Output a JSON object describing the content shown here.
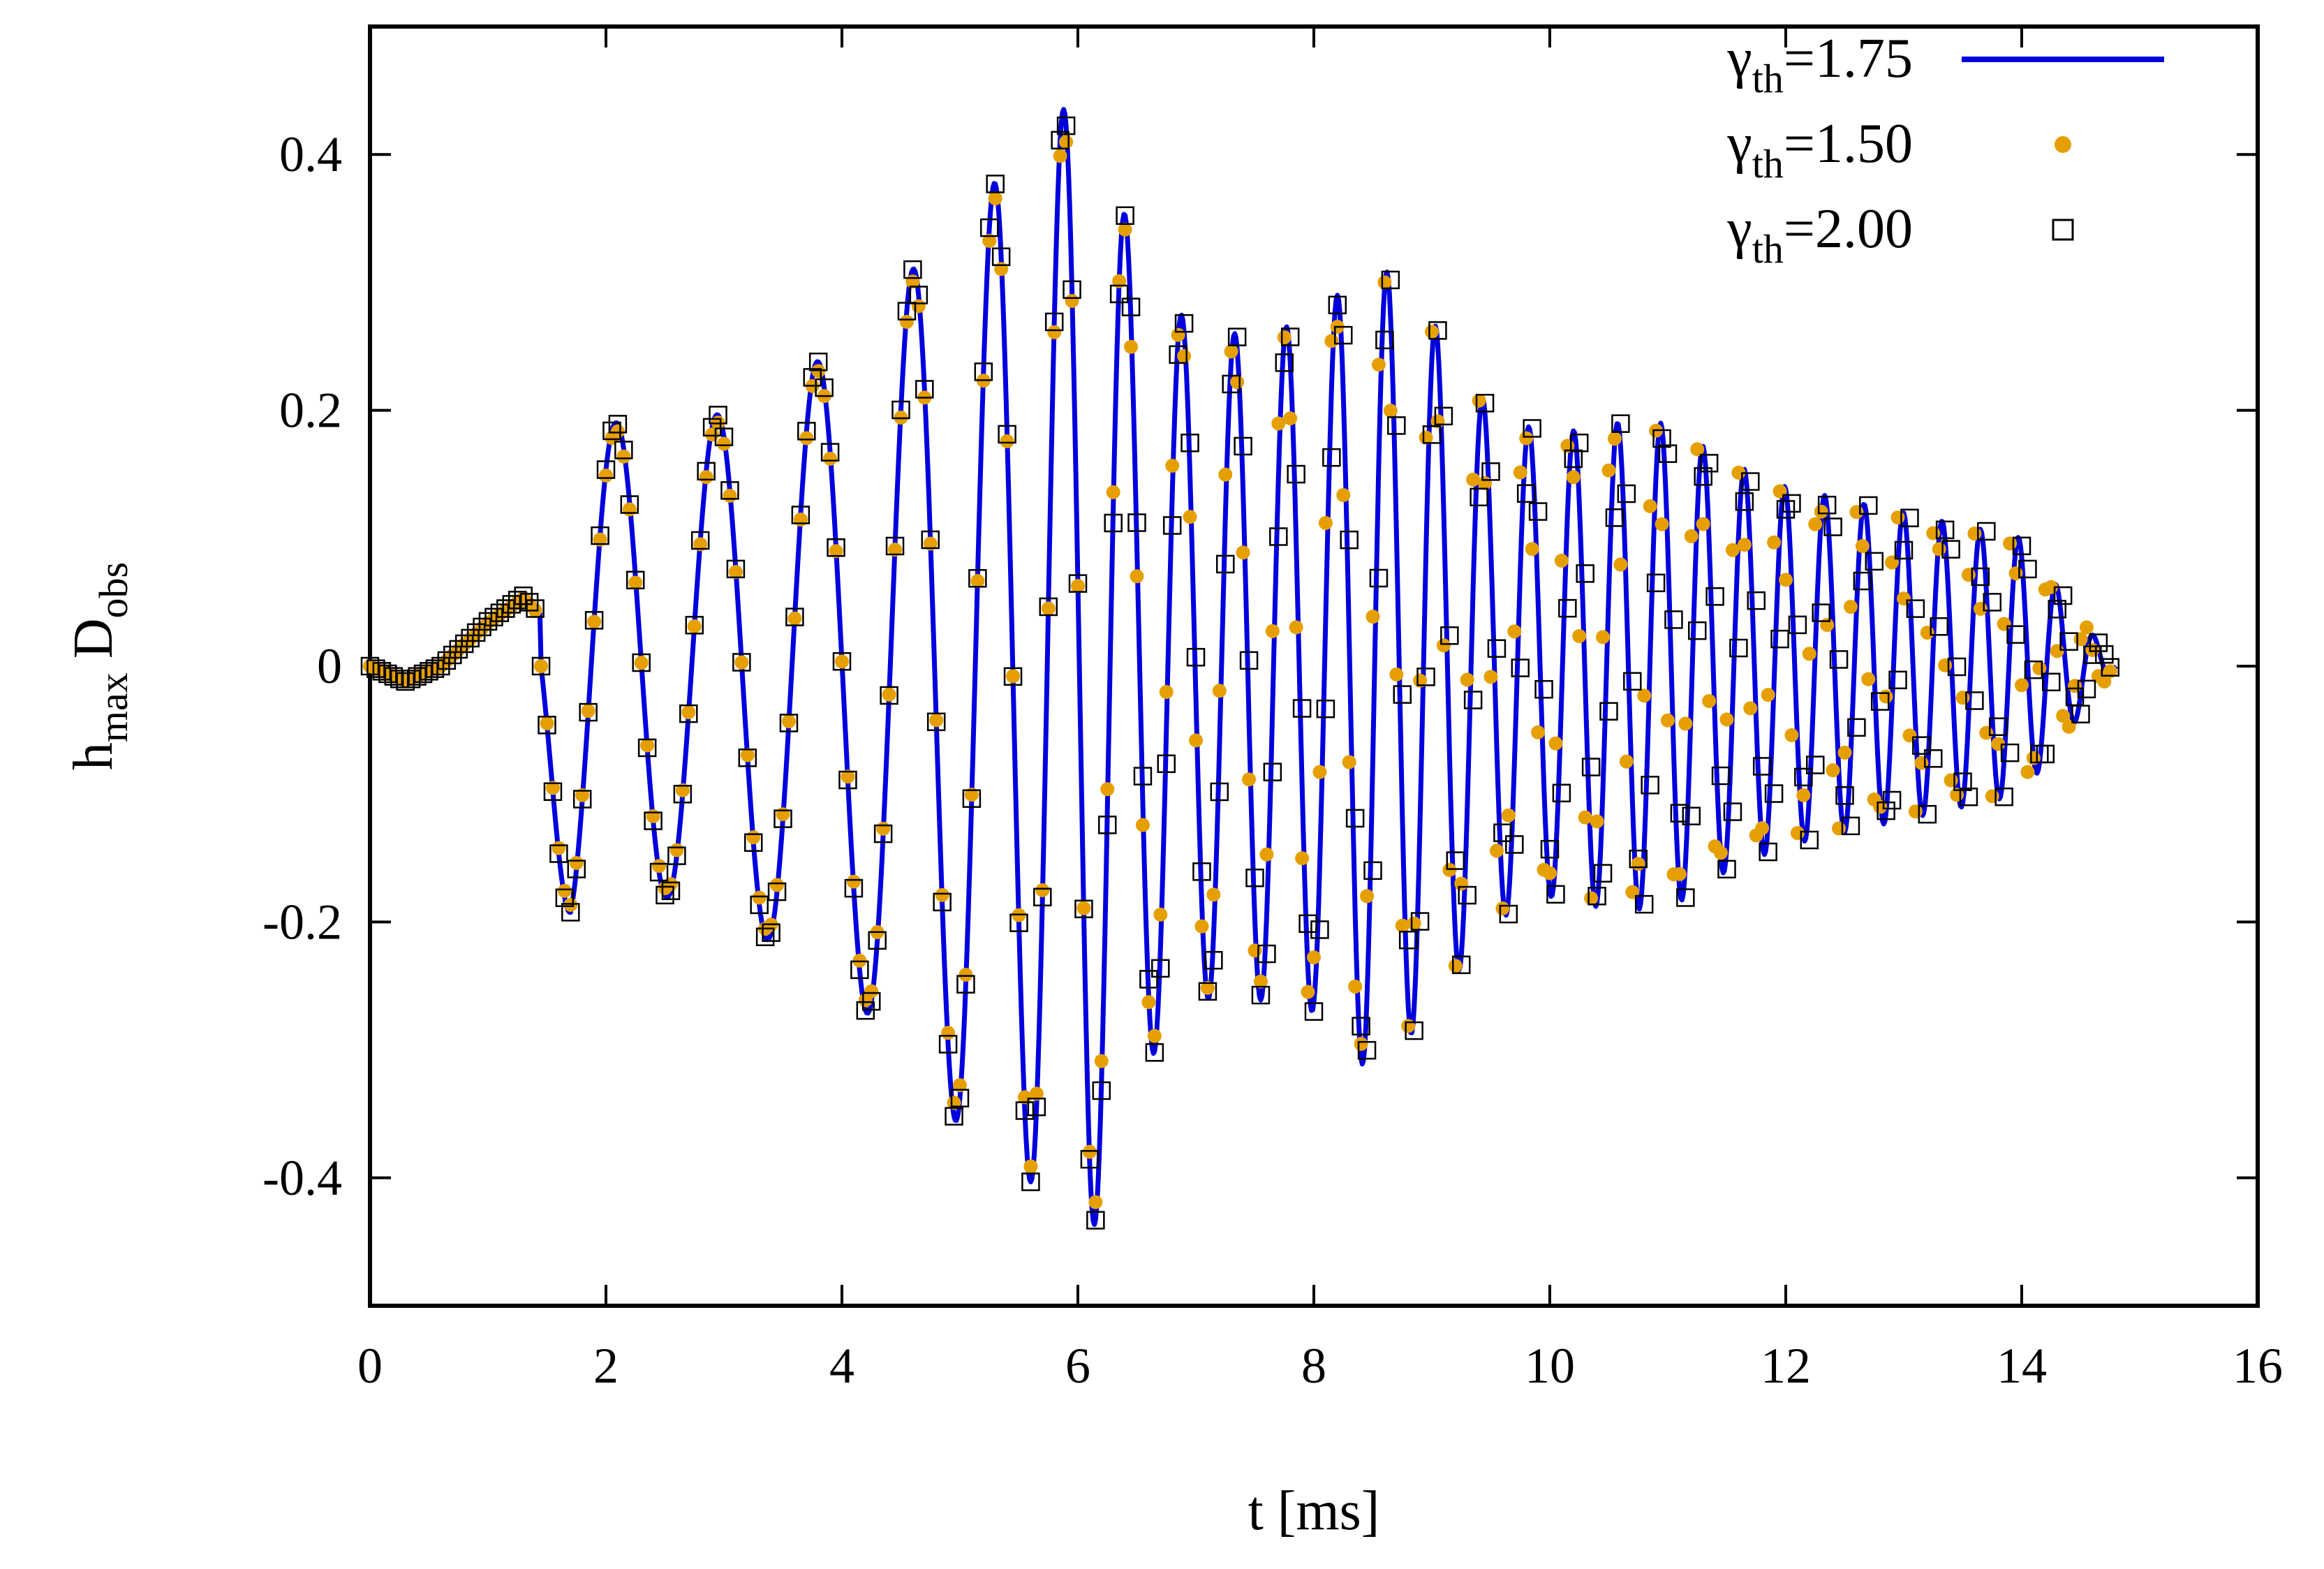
{
  "chart_data": {
    "type": "line",
    "title": "",
    "xlabel": "t [ms]",
    "ylabel_main": "h",
    "ylabel_sub1": "max",
    "ylabel_mid": " D",
    "ylabel_sub2": "obs",
    "xlim": [
      0,
      16
    ],
    "ylim": [
      -0.5,
      0.5
    ],
    "xticks": [
      0,
      2,
      4,
      6,
      8,
      10,
      12,
      14,
      16
    ],
    "xtick_labels": [
      "0",
      "2",
      "4",
      "6",
      "8",
      "10",
      "12",
      "14",
      "16"
    ],
    "yticks": [
      -0.4,
      -0.2,
      0,
      0.2,
      0.4
    ],
    "ytick_labels": [
      "-0.4",
      "-0.2",
      "0",
      "0.2",
      "0.4"
    ],
    "grid": false,
    "legend_position": "top-right",
    "series": [
      {
        "name": "γth=1.75",
        "label_main": "γ",
        "label_sub": "th",
        "label_value": "=1.75",
        "style": "line",
        "color": "#0000dd",
        "envelope": [
          [
            0,
            0
          ],
          [
            1.3,
            0.055
          ],
          [
            1.7,
            0.2
          ],
          [
            2.5,
            0.18
          ],
          [
            3.3,
            0.21
          ],
          [
            4.0,
            0.25
          ],
          [
            4.6,
            0.31
          ],
          [
            5.0,
            0.36
          ],
          [
            5.5,
            0.39
          ],
          [
            5.8,
            0.43
          ],
          [
            6.1,
            0.45
          ],
          [
            6.5,
            0.32
          ],
          [
            7.0,
            0.26
          ],
          [
            7.5,
            0.26
          ],
          [
            8.0,
            0.27
          ],
          [
            8.5,
            0.32
          ],
          [
            9.0,
            0.27
          ],
          [
            9.5,
            0.2
          ],
          [
            10.0,
            0.18
          ],
          [
            10.5,
            0.19
          ],
          [
            11.0,
            0.19
          ],
          [
            11.5,
            0.16
          ],
          [
            12.0,
            0.14
          ],
          [
            12.5,
            0.13
          ],
          [
            13.0,
            0.12
          ],
          [
            13.5,
            0.11
          ],
          [
            14.0,
            0.1
          ],
          [
            14.4,
            0.05
          ],
          [
            14.8,
            0.0
          ]
        ],
        "periods": [
          [
            1.5,
            0.85
          ],
          [
            4.0,
            0.85
          ],
          [
            5.8,
            0.55
          ],
          [
            7.0,
            0.45
          ],
          [
            8.5,
            0.42
          ],
          [
            10.0,
            0.38
          ],
          [
            12.0,
            0.34
          ],
          [
            14.0,
            0.32
          ]
        ],
        "pre_merger_points": [
          [
            0,
            0
          ],
          [
            0.3,
            -0.012
          ],
          [
            0.6,
            0.0
          ],
          [
            1.0,
            0.035
          ],
          [
            1.3,
            0.055
          ],
          [
            1.45,
            0.04
          ]
        ],
        "x_start": 0,
        "x_end": 14.8,
        "x_step": 0.01
      },
      {
        "name": "γth=1.50",
        "label_main": "γ",
        "label_sub": "th",
        "label_value": "=1.50",
        "style": "dot",
        "color": "#e69f00",
        "x_step": 0.05,
        "phase_drift": 0.18,
        "amp_scale": 0.97
      },
      {
        "name": "γth=2.00",
        "label_main": "γ",
        "label_sub": "th",
        "label_value": "=2.00",
        "style": "square",
        "color": "#000000",
        "x_step": 0.05,
        "phase_drift": -0.15,
        "amp_scale": 1.0
      }
    ]
  }
}
